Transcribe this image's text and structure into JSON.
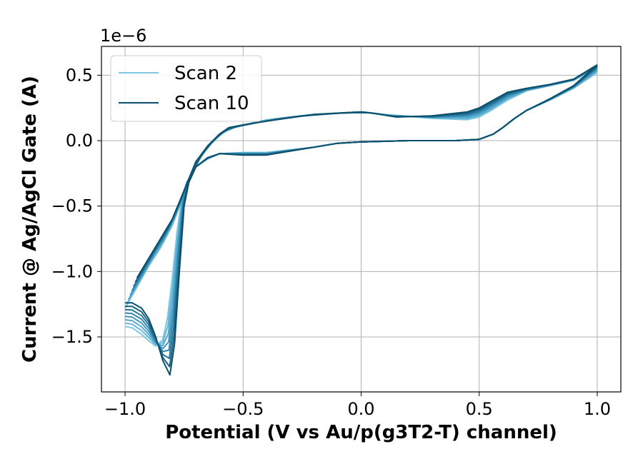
{
  "chart_data": {
    "type": "line",
    "xlabel": "Potential (V vs Au/p(g3T2-T) channel)",
    "ylabel": "Current @ Ag/AgCl Gate (A)",
    "y_offset_label": "1e−6",
    "y_scale_exponent": -6,
    "xlim": [
      -1.1,
      1.1
    ],
    "ylim": [
      -1.92,
      0.72
    ],
    "x_ticks": [
      -1.0,
      -0.5,
      0.0,
      0.5,
      1.0
    ],
    "x_tick_labels": [
      "−1.0",
      "−0.5",
      "0.0",
      "0.5",
      "1.0"
    ],
    "y_ticks": [
      0.5,
      0.0,
      -0.5,
      -1.0,
      -1.5
    ],
    "y_tick_labels": [
      "0.5",
      "0.0",
      "−0.5",
      "−1.0",
      "−1.5"
    ],
    "grid": true,
    "legend_position": "top-left",
    "legend": [
      {
        "label": "Scan 2",
        "color": "#7ec8e3"
      },
      {
        "label": "Scan 10",
        "color": "#0b4f6c"
      }
    ],
    "series": [
      {
        "name": "Scan 2",
        "color": "#7ec8e3",
        "param": 0.0
      },
      {
        "color": "#67b7d6",
        "param": 0.143
      },
      {
        "color": "#54a8cb",
        "param": 0.286
      },
      {
        "color": "#4397bd",
        "param": 0.429
      },
      {
        "color": "#3385ac",
        "param": 0.571
      },
      {
        "color": "#237399",
        "param": 0.714
      },
      {
        "color": "#166183",
        "param": 0.857
      },
      {
        "name": "Scan 10",
        "color": "#0b4f6c",
        "param": 1.0
      }
    ],
    "reference_curves": {
      "forward_initial": [
        [
          0.0,
          -0.01
        ],
        [
          0.2,
          0.0
        ],
        [
          0.4,
          0.0
        ],
        [
          0.5,
          0.01
        ],
        [
          0.56,
          0.05
        ],
        [
          0.6,
          0.1
        ],
        [
          0.65,
          0.17
        ],
        [
          0.7,
          0.23
        ],
        [
          0.8,
          0.31
        ],
        [
          0.9,
          0.4
        ],
        [
          1.0,
          0.52
        ]
      ],
      "forward_final": [
        [
          0.0,
          -0.01
        ],
        [
          0.2,
          0.0
        ],
        [
          0.4,
          0.0
        ],
        [
          0.5,
          0.01
        ],
        [
          0.56,
          0.05
        ],
        [
          0.6,
          0.1
        ],
        [
          0.65,
          0.17
        ],
        [
          0.7,
          0.23
        ],
        [
          0.8,
          0.32
        ],
        [
          0.9,
          0.42
        ],
        [
          1.0,
          0.58
        ]
      ],
      "reverse_initial": [
        [
          1.0,
          0.56
        ],
        [
          0.9,
          0.46
        ],
        [
          0.8,
          0.42
        ],
        [
          0.7,
          0.38
        ],
        [
          0.62,
          0.31
        ],
        [
          0.55,
          0.23
        ],
        [
          0.5,
          0.18
        ],
        [
          0.45,
          0.16
        ],
        [
          0.3,
          0.17
        ],
        [
          0.1,
          0.2
        ],
        [
          0.0,
          0.22
        ],
        [
          -0.2,
          0.2
        ],
        [
          -0.4,
          0.16
        ],
        [
          -0.5,
          0.12
        ],
        [
          -0.56,
          0.09
        ],
        [
          -0.6,
          0.04
        ],
        [
          -0.65,
          -0.05
        ],
        [
          -0.7,
          -0.18
        ],
        [
          -0.75,
          -0.4
        ],
        [
          -0.8,
          -0.65
        ],
        [
          -0.85,
          -0.82
        ],
        [
          -0.9,
          -0.96
        ],
        [
          -0.95,
          -1.12
        ],
        [
          -1.0,
          -1.28
        ]
      ],
      "reverse_final": [
        [
          1.0,
          0.58
        ],
        [
          0.9,
          0.47
        ],
        [
          0.8,
          0.43
        ],
        [
          0.7,
          0.4
        ],
        [
          0.62,
          0.37
        ],
        [
          0.55,
          0.3
        ],
        [
          0.5,
          0.25
        ],
        [
          0.45,
          0.22
        ],
        [
          0.3,
          0.19
        ],
        [
          0.15,
          0.18
        ],
        [
          0.05,
          0.21
        ],
        [
          0.0,
          0.22
        ],
        [
          -0.2,
          0.2
        ],
        [
          -0.4,
          0.15
        ],
        [
          -0.5,
          0.12
        ],
        [
          -0.56,
          0.1
        ],
        [
          -0.6,
          0.05
        ],
        [
          -0.65,
          -0.04
        ],
        [
          -0.7,
          -0.16
        ],
        [
          -0.75,
          -0.38
        ],
        [
          -0.8,
          -0.6
        ],
        [
          -0.85,
          -0.75
        ],
        [
          -0.9,
          -0.9
        ],
        [
          -0.95,
          -1.05
        ],
        [
          -1.0,
          -1.24
        ]
      ],
      "negative_initial": [
        [
          -1.0,
          -1.42
        ],
        [
          -0.97,
          -1.43
        ],
        [
          -0.93,
          -1.48
        ],
        [
          -0.9,
          -1.53
        ],
        [
          -0.87,
          -1.57
        ],
        [
          -0.84,
          -1.52
        ],
        [
          -0.82,
          -1.35
        ],
        [
          -0.8,
          -1.05
        ],
        [
          -0.78,
          -0.7
        ],
        [
          -0.76,
          -0.45
        ],
        [
          -0.74,
          -0.32
        ],
        [
          -0.7,
          -0.2
        ],
        [
          -0.65,
          -0.14
        ],
        [
          -0.6,
          -0.1
        ],
        [
          -0.5,
          -0.09
        ],
        [
          -0.4,
          -0.09
        ],
        [
          -0.3,
          -0.07
        ],
        [
          -0.2,
          -0.05
        ],
        [
          -0.1,
          -0.02
        ],
        [
          0.0,
          -0.01
        ]
      ],
      "negative_final": [
        [
          -1.0,
          -1.24
        ],
        [
          -0.97,
          -1.24
        ],
        [
          -0.93,
          -1.28
        ],
        [
          -0.9,
          -1.36
        ],
        [
          -0.87,
          -1.5
        ],
        [
          -0.84,
          -1.68
        ],
        [
          -0.81,
          -1.79
        ],
        [
          -0.79,
          -1.55
        ],
        [
          -0.77,
          -1.0
        ],
        [
          -0.75,
          -0.5
        ],
        [
          -0.73,
          -0.32
        ],
        [
          -0.7,
          -0.2
        ],
        [
          -0.65,
          -0.13
        ],
        [
          -0.6,
          -0.1
        ],
        [
          -0.5,
          -0.11
        ],
        [
          -0.4,
          -0.11
        ],
        [
          -0.3,
          -0.08
        ],
        [
          -0.2,
          -0.05
        ],
        [
          -0.1,
          -0.02
        ],
        [
          0.0,
          -0.01
        ]
      ]
    }
  }
}
